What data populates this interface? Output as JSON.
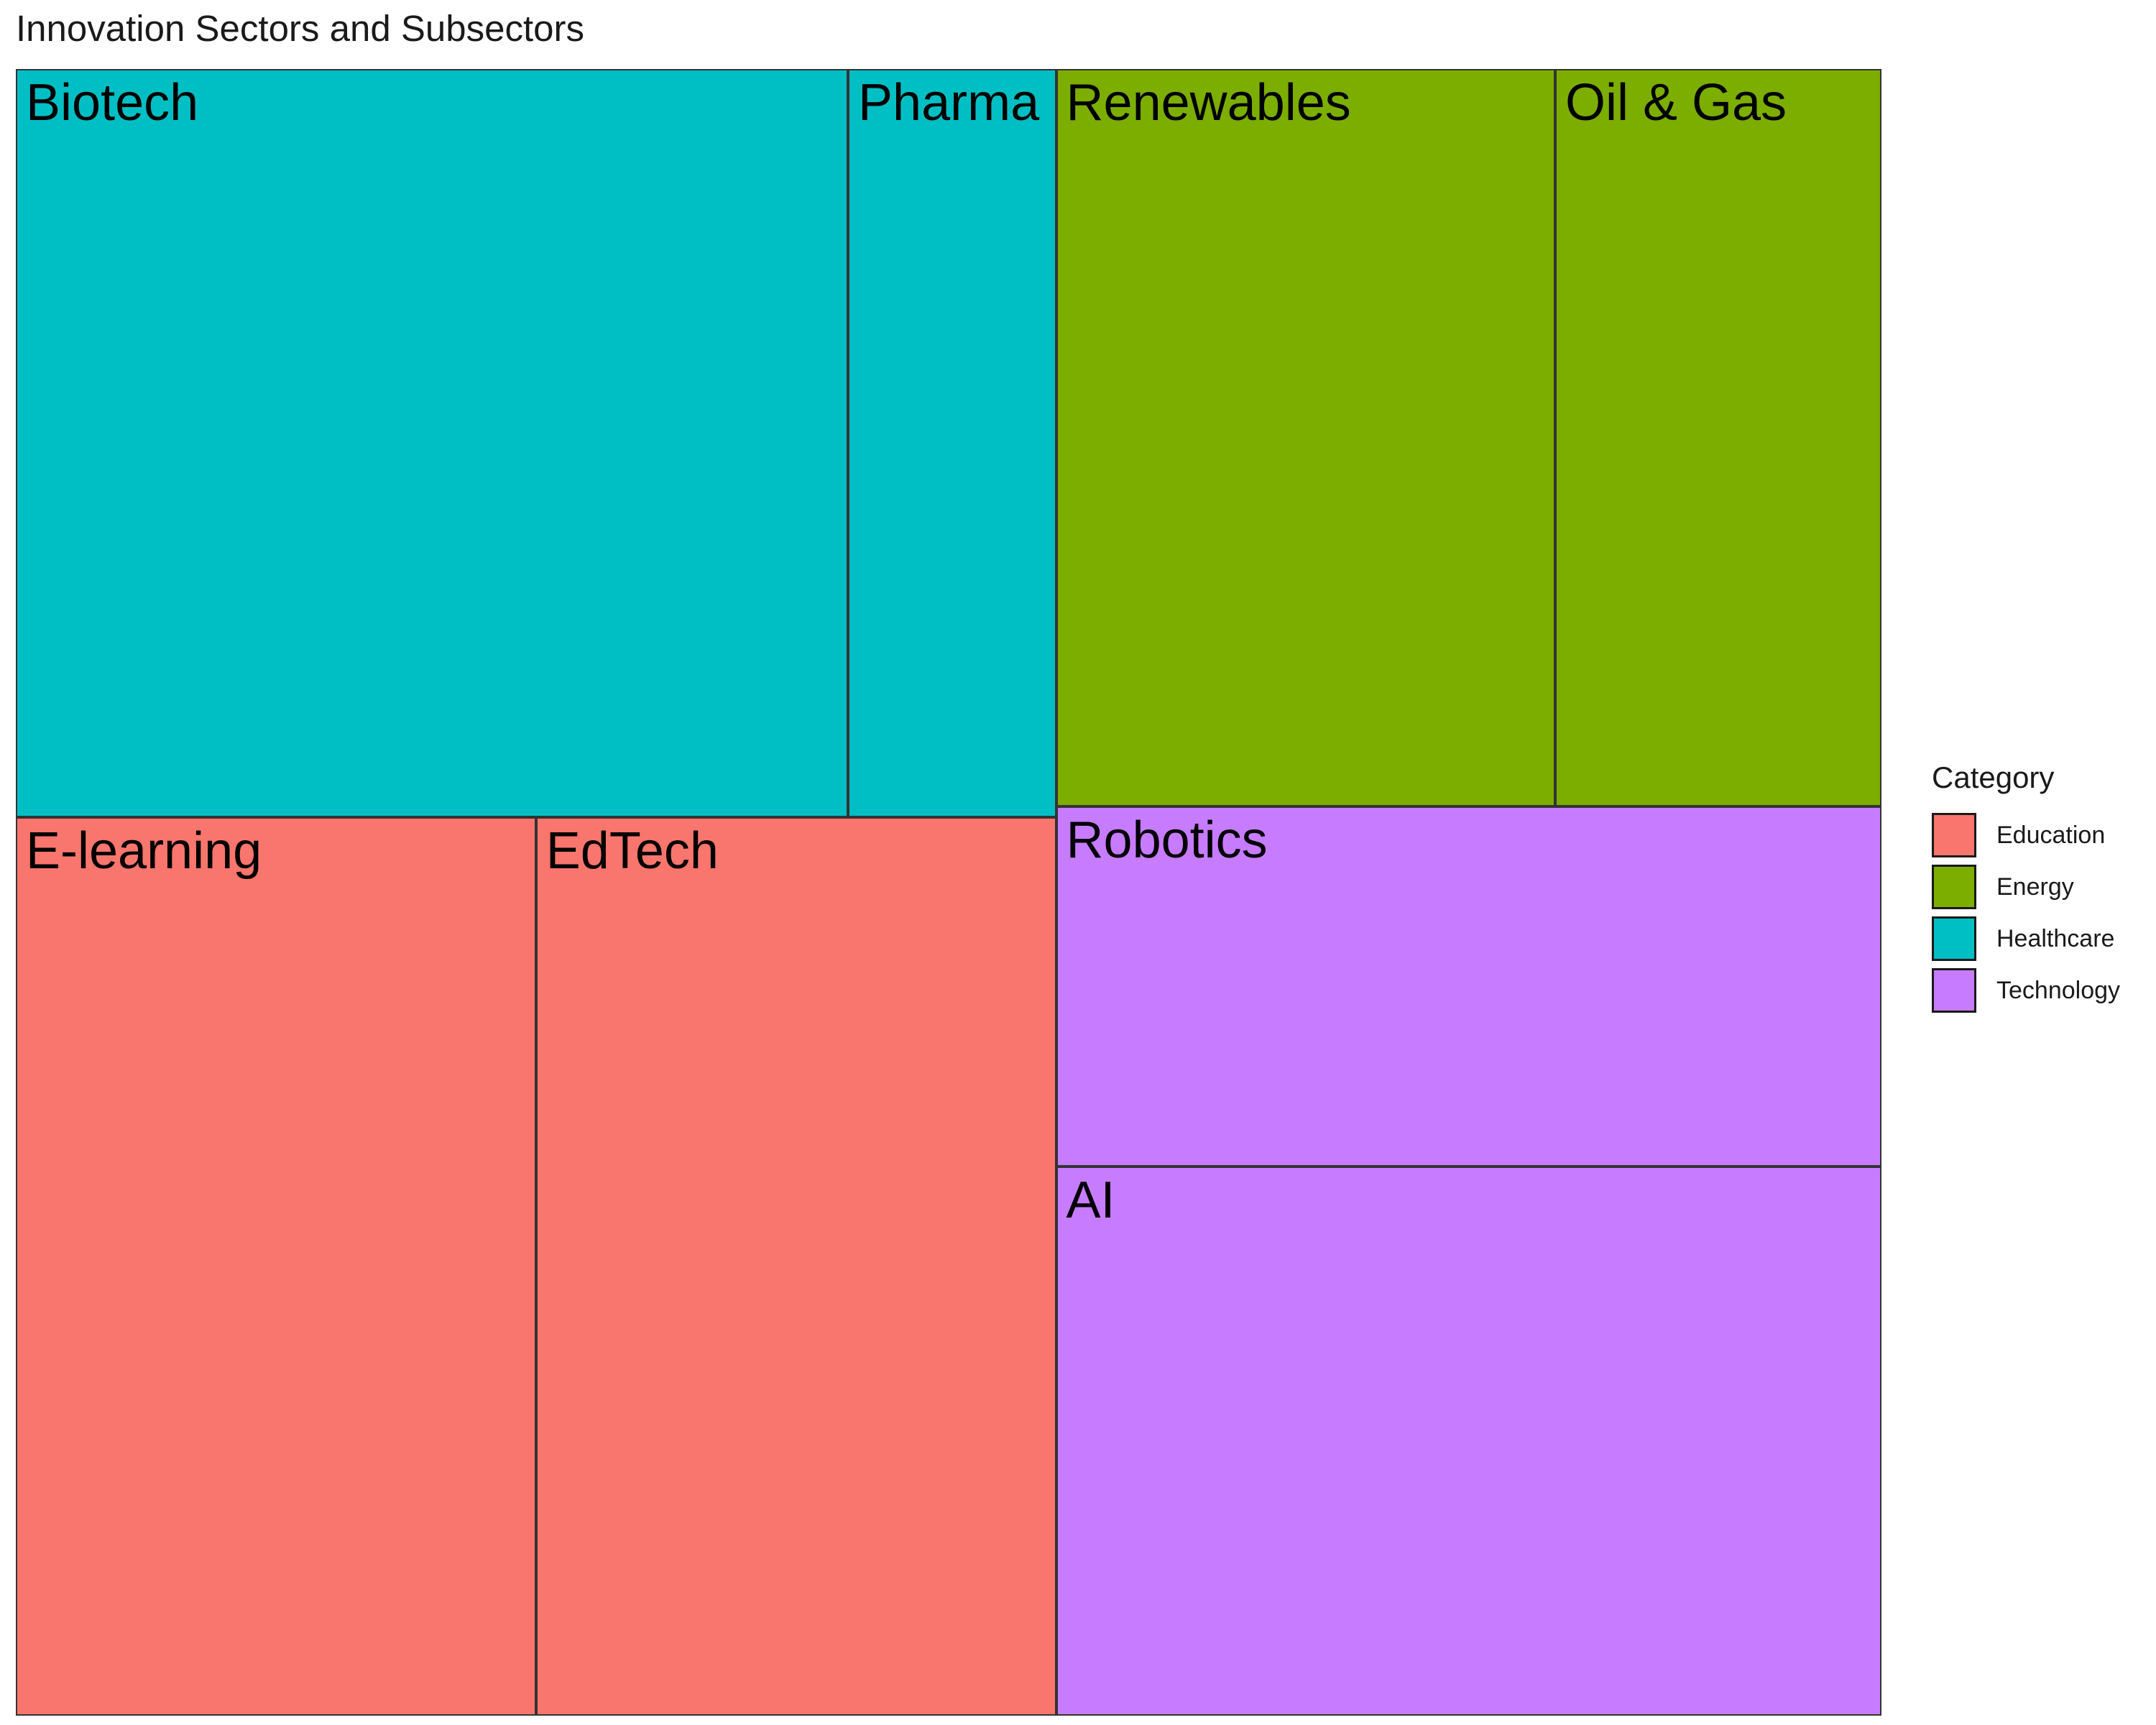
{
  "chart_data": {
    "type": "treemap",
    "title": "Innovation Sectors and Subsectors",
    "legend": {
      "title": "Category",
      "position": "right",
      "items": [
        {
          "name": "Education",
          "color": "#F8766D"
        },
        {
          "name": "Energy",
          "color": "#7CAE00"
        },
        {
          "name": "Healthcare",
          "color": "#00BFC4"
        },
        {
          "name": "Technology",
          "color": "#C77CFF"
        }
      ]
    },
    "tiles": [
      {
        "label": "Biotech",
        "category": "Healthcare",
        "value": 22
      },
      {
        "label": "Pharma",
        "category": "Healthcare",
        "value": 5.5
      },
      {
        "label": "E-learning",
        "category": "Education",
        "value": 16.5
      },
      {
        "label": "EdTech",
        "category": "Education",
        "value": 16.5
      },
      {
        "label": "Renewables",
        "category": "Energy",
        "value": 13
      },
      {
        "label": "Oil & Gas",
        "category": "Energy",
        "value": 8.5
      },
      {
        "label": "Robotics",
        "category": "Technology",
        "value": 10.5
      },
      {
        "label": "AI",
        "category": "Technology",
        "value": 16
      }
    ]
  }
}
